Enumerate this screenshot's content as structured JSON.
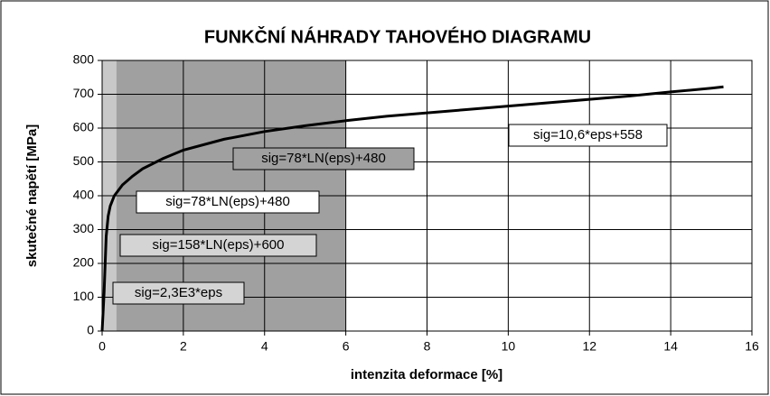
{
  "chart_data": {
    "type": "line",
    "title": "FUNKČNÍ NÁHRADY TAHOVÉHO DIAGRAMU",
    "x_label": "intenzita deformace [%]",
    "y_label": "skutečné napětí [MPa]",
    "x": [
      0,
      0.02,
      0.05,
      0.1,
      0.15,
      0.2,
      0.3,
      0.5,
      0.75,
      1,
      1.5,
      2,
      3,
      4,
      5,
      6,
      7,
      8,
      9,
      10,
      11,
      12,
      13,
      14,
      15,
      15.3
    ],
    "series": [
      {
        "color": "#000000",
        "values": [
          0,
          46,
          115,
          280,
          340,
          370,
          400,
          432,
          458,
          480,
          510,
          535,
          567,
          590,
          607,
          622,
          635,
          645,
          655,
          665,
          675,
          685,
          695,
          707,
          718,
          722
        ]
      }
    ],
    "xlim": [
      0,
      16
    ],
    "ylim": [
      0,
      800
    ],
    "xticks": [
      0,
      2,
      4,
      6,
      8,
      10,
      12,
      14,
      16
    ],
    "yticks": [
      0,
      100,
      200,
      300,
      400,
      500,
      600,
      700,
      800
    ],
    "grid": true,
    "regions": [
      {
        "x": [
          0,
          0.35
        ],
        "color": "#c8c8c8"
      },
      {
        "x": [
          0.35,
          6
        ],
        "color": "#a0a0a0"
      }
    ],
    "annotations": [
      {
        "text": "sig=2,3E3*eps",
        "color": "#d4d4d4"
      },
      {
        "text": "sig=158*LN(eps)+600",
        "color": "#d4d4d4"
      },
      {
        "text": "sig=78*LN(eps)+480",
        "color": "#ffffff"
      },
      {
        "text": "sig=78*LN(eps)+480",
        "color": "#a0a0a0"
      },
      {
        "text": "sig=10,6*eps+558",
        "color": "#ffffff"
      }
    ]
  }
}
